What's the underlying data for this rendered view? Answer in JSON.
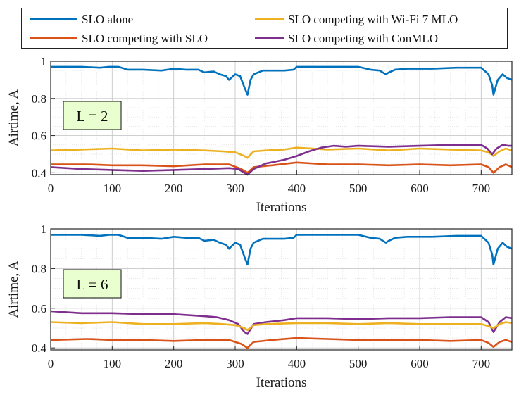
{
  "legend": [
    {
      "key": "alone",
      "label": "SLO alone",
      "color": "#0072BD"
    },
    {
      "key": "slo",
      "label": "SLO competing with SLO",
      "color": "#D95319"
    },
    {
      "key": "wifi7",
      "label": "SLO competing with Wi-Fi 7 MLO",
      "color": "#EDB120"
    },
    {
      "key": "conmlo",
      "label": "SLO competing with ConMLO",
      "color": "#7E2F8E"
    }
  ],
  "chart_data": [
    {
      "type": "line",
      "annotation": "L = 2",
      "xlabel": "Iterations",
      "ylabel": "Airtime, A",
      "xlim": [
        0,
        750
      ],
      "ylim": [
        0.39,
        1.0
      ],
      "xticks": [
        0,
        100,
        200,
        300,
        400,
        500,
        600,
        700
      ],
      "yticks": [
        0.4,
        0.6,
        0.8,
        1
      ],
      "ytick_labels": [
        "0.4",
        "0.6",
        "0.8",
        "1"
      ],
      "grid": true,
      "series": [
        {
          "key": "alone",
          "name": "SLO alone",
          "points": [
            [
              0,
              0.97
            ],
            [
              50,
              0.97
            ],
            [
              80,
              0.965
            ],
            [
              95,
              0.97
            ],
            [
              110,
              0.97
            ],
            [
              125,
              0.955
            ],
            [
              150,
              0.955
            ],
            [
              180,
              0.95
            ],
            [
              200,
              0.96
            ],
            [
              220,
              0.955
            ],
            [
              240,
              0.955
            ],
            [
              250,
              0.94
            ],
            [
              265,
              0.945
            ],
            [
              275,
              0.93
            ],
            [
              285,
              0.92
            ],
            [
              290,
              0.9
            ],
            [
              300,
              0.93
            ],
            [
              308,
              0.92
            ],
            [
              315,
              0.86
            ],
            [
              320,
              0.82
            ],
            [
              325,
              0.9
            ],
            [
              330,
              0.93
            ],
            [
              345,
              0.95
            ],
            [
              360,
              0.95
            ],
            [
              380,
              0.95
            ],
            [
              395,
              0.955
            ],
            [
              400,
              0.97
            ],
            [
              450,
              0.97
            ],
            [
              500,
              0.97
            ],
            [
              520,
              0.955
            ],
            [
              535,
              0.95
            ],
            [
              545,
              0.93
            ],
            [
              550,
              0.94
            ],
            [
              560,
              0.955
            ],
            [
              580,
              0.96
            ],
            [
              620,
              0.96
            ],
            [
              660,
              0.965
            ],
            [
              700,
              0.965
            ],
            [
              712,
              0.93
            ],
            [
              718,
              0.87
            ],
            [
              720,
              0.82
            ],
            [
              727,
              0.9
            ],
            [
              735,
              0.93
            ],
            [
              742,
              0.91
            ],
            [
              750,
              0.9
            ]
          ]
        },
        {
          "key": "wifi7",
          "name": "SLO competing with Wi-Fi 7 MLO",
          "points": [
            [
              0,
              0.52
            ],
            [
              50,
              0.525
            ],
            [
              100,
              0.53
            ],
            [
              150,
              0.52
            ],
            [
              200,
              0.525
            ],
            [
              250,
              0.52
            ],
            [
              280,
              0.515
            ],
            [
              300,
              0.51
            ],
            [
              315,
              0.49
            ],
            [
              320,
              0.48
            ],
            [
              330,
              0.515
            ],
            [
              350,
              0.52
            ],
            [
              380,
              0.525
            ],
            [
              400,
              0.535
            ],
            [
              450,
              0.525
            ],
            [
              500,
              0.53
            ],
            [
              550,
              0.52
            ],
            [
              600,
              0.53
            ],
            [
              650,
              0.525
            ],
            [
              700,
              0.52
            ],
            [
              712,
              0.51
            ],
            [
              720,
              0.49
            ],
            [
              730,
              0.515
            ],
            [
              740,
              0.53
            ],
            [
              750,
              0.52
            ]
          ]
        },
        {
          "key": "slo",
          "name": "SLO competing with SLO",
          "points": [
            [
              0,
              0.445
            ],
            [
              60,
              0.445
            ],
            [
              100,
              0.44
            ],
            [
              150,
              0.44
            ],
            [
              200,
              0.435
            ],
            [
              250,
              0.445
            ],
            [
              290,
              0.445
            ],
            [
              310,
              0.42
            ],
            [
              320,
              0.4
            ],
            [
              330,
              0.43
            ],
            [
              360,
              0.44
            ],
            [
              400,
              0.455
            ],
            [
              450,
              0.445
            ],
            [
              500,
              0.445
            ],
            [
              550,
              0.44
            ],
            [
              600,
              0.445
            ],
            [
              650,
              0.44
            ],
            [
              700,
              0.445
            ],
            [
              712,
              0.43
            ],
            [
              720,
              0.4
            ],
            [
              730,
              0.43
            ],
            [
              740,
              0.445
            ],
            [
              750,
              0.43
            ]
          ]
        },
        {
          "key": "conmlo",
          "name": "SLO competing with ConMLO",
          "points": [
            [
              0,
              0.43
            ],
            [
              50,
              0.42
            ],
            [
              100,
              0.415
            ],
            [
              150,
              0.41
            ],
            [
              200,
              0.415
            ],
            [
              250,
              0.42
            ],
            [
              290,
              0.425
            ],
            [
              305,
              0.42
            ],
            [
              315,
              0.4
            ],
            [
              320,
              0.39
            ],
            [
              330,
              0.42
            ],
            [
              350,
              0.45
            ],
            [
              380,
              0.47
            ],
            [
              400,
              0.49
            ],
            [
              420,
              0.515
            ],
            [
              440,
              0.535
            ],
            [
              460,
              0.545
            ],
            [
              480,
              0.54
            ],
            [
              500,
              0.545
            ],
            [
              550,
              0.54
            ],
            [
              600,
              0.545
            ],
            [
              650,
              0.55
            ],
            [
              700,
              0.55
            ],
            [
              710,
              0.53
            ],
            [
              718,
              0.5
            ],
            [
              725,
              0.53
            ],
            [
              735,
              0.55
            ],
            [
              745,
              0.545
            ],
            [
              750,
              0.545
            ]
          ]
        }
      ]
    },
    {
      "type": "line",
      "annotation": "L = 6",
      "xlabel": "Iterations",
      "ylabel": "Airtime, A",
      "xlim": [
        0,
        750
      ],
      "ylim": [
        0.39,
        1.0
      ],
      "xticks": [
        0,
        100,
        200,
        300,
        400,
        500,
        600,
        700
      ],
      "yticks": [
        0.4,
        0.6,
        0.8,
        1
      ],
      "ytick_labels": [
        "0.4",
        "0.6",
        "0.8",
        "1"
      ],
      "grid": true,
      "series": [
        {
          "key": "alone",
          "name": "SLO alone",
          "points": [
            [
              0,
              0.97
            ],
            [
              50,
              0.97
            ],
            [
              80,
              0.965
            ],
            [
              95,
              0.97
            ],
            [
              110,
              0.97
            ],
            [
              125,
              0.955
            ],
            [
              150,
              0.955
            ],
            [
              180,
              0.95
            ],
            [
              200,
              0.96
            ],
            [
              220,
              0.955
            ],
            [
              240,
              0.955
            ],
            [
              250,
              0.94
            ],
            [
              265,
              0.945
            ],
            [
              275,
              0.93
            ],
            [
              285,
              0.92
            ],
            [
              290,
              0.9
            ],
            [
              300,
              0.93
            ],
            [
              308,
              0.92
            ],
            [
              315,
              0.86
            ],
            [
              320,
              0.82
            ],
            [
              325,
              0.9
            ],
            [
              330,
              0.93
            ],
            [
              345,
              0.95
            ],
            [
              360,
              0.95
            ],
            [
              380,
              0.95
            ],
            [
              395,
              0.955
            ],
            [
              400,
              0.97
            ],
            [
              450,
              0.97
            ],
            [
              500,
              0.97
            ],
            [
              520,
              0.955
            ],
            [
              535,
              0.95
            ],
            [
              545,
              0.93
            ],
            [
              550,
              0.94
            ],
            [
              560,
              0.955
            ],
            [
              580,
              0.96
            ],
            [
              620,
              0.96
            ],
            [
              660,
              0.965
            ],
            [
              700,
              0.965
            ],
            [
              712,
              0.93
            ],
            [
              718,
              0.87
            ],
            [
              720,
              0.82
            ],
            [
              727,
              0.9
            ],
            [
              735,
              0.93
            ],
            [
              742,
              0.91
            ],
            [
              750,
              0.9
            ]
          ]
        },
        {
          "key": "conmlo",
          "name": "SLO competing with ConMLO",
          "points": [
            [
              0,
              0.585
            ],
            [
              50,
              0.575
            ],
            [
              100,
              0.575
            ],
            [
              150,
              0.57
            ],
            [
              200,
              0.57
            ],
            [
              250,
              0.56
            ],
            [
              270,
              0.555
            ],
            [
              290,
              0.54
            ],
            [
              305,
              0.52
            ],
            [
              315,
              0.48
            ],
            [
              320,
              0.47
            ],
            [
              330,
              0.52
            ],
            [
              350,
              0.53
            ],
            [
              380,
              0.54
            ],
            [
              400,
              0.55
            ],
            [
              450,
              0.55
            ],
            [
              500,
              0.545
            ],
            [
              550,
              0.55
            ],
            [
              600,
              0.55
            ],
            [
              650,
              0.555
            ],
            [
              700,
              0.555
            ],
            [
              712,
              0.53
            ],
            [
              720,
              0.48
            ],
            [
              730,
              0.53
            ],
            [
              740,
              0.555
            ],
            [
              750,
              0.55
            ]
          ]
        },
        {
          "key": "wifi7",
          "name": "SLO competing with Wi-Fi 7 MLO",
          "points": [
            [
              0,
              0.53
            ],
            [
              50,
              0.525
            ],
            [
              100,
              0.53
            ],
            [
              150,
              0.52
            ],
            [
              200,
              0.52
            ],
            [
              250,
              0.525
            ],
            [
              280,
              0.52
            ],
            [
              300,
              0.515
            ],
            [
              315,
              0.5
            ],
            [
              320,
              0.49
            ],
            [
              330,
              0.515
            ],
            [
              350,
              0.52
            ],
            [
              400,
              0.525
            ],
            [
              450,
              0.525
            ],
            [
              500,
              0.52
            ],
            [
              550,
              0.525
            ],
            [
              600,
              0.52
            ],
            [
              650,
              0.52
            ],
            [
              700,
              0.52
            ],
            [
              712,
              0.51
            ],
            [
              720,
              0.5
            ],
            [
              730,
              0.52
            ],
            [
              740,
              0.53
            ],
            [
              750,
              0.525
            ]
          ]
        },
        {
          "key": "slo",
          "name": "SLO competing with SLO",
          "points": [
            [
              0,
              0.44
            ],
            [
              60,
              0.445
            ],
            [
              100,
              0.44
            ],
            [
              150,
              0.44
            ],
            [
              200,
              0.435
            ],
            [
              250,
              0.44
            ],
            [
              290,
              0.44
            ],
            [
              310,
              0.42
            ],
            [
              320,
              0.4
            ],
            [
              330,
              0.43
            ],
            [
              360,
              0.44
            ],
            [
              400,
              0.45
            ],
            [
              450,
              0.445
            ],
            [
              500,
              0.44
            ],
            [
              550,
              0.44
            ],
            [
              600,
              0.44
            ],
            [
              650,
              0.435
            ],
            [
              700,
              0.44
            ],
            [
              712,
              0.425
            ],
            [
              720,
              0.405
            ],
            [
              730,
              0.43
            ],
            [
              740,
              0.44
            ],
            [
              750,
              0.43
            ]
          ]
        }
      ]
    }
  ]
}
